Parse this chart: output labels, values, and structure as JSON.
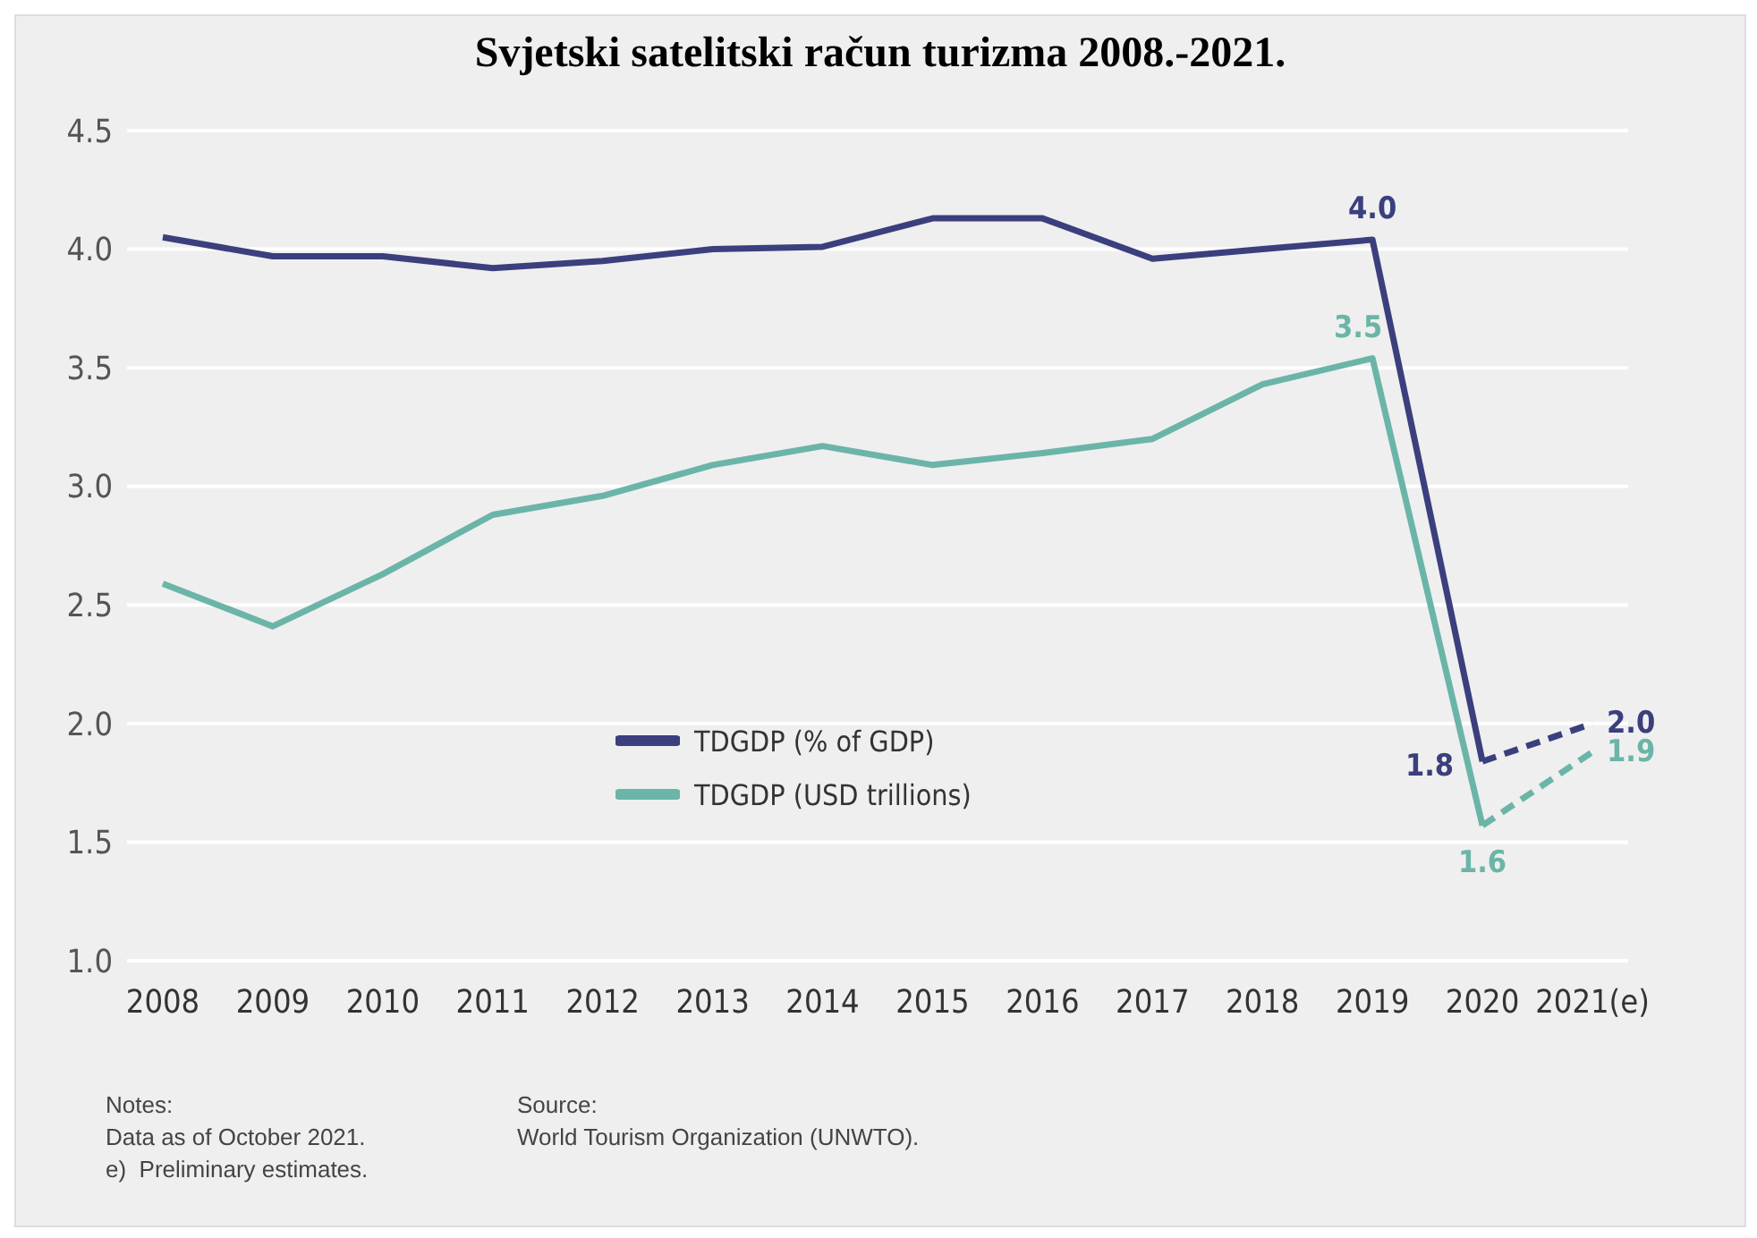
{
  "chart_data": {
    "type": "line",
    "title": "Svjetski satelitski račun turizma 2008.-2021.",
    "categories": [
      "2008",
      "2009",
      "2010",
      "2011",
      "2012",
      "2013",
      "2014",
      "2015",
      "2016",
      "2017",
      "2018",
      "2019",
      "2020",
      "2021(e)"
    ],
    "series": [
      {
        "name": "TDGDP (% of GDP)",
        "color": "#3b3f7d",
        "line_style": "solid",
        "values": [
          4.05,
          3.97,
          3.97,
          3.92,
          3.95,
          4.0,
          4.01,
          4.13,
          4.13,
          3.96,
          4.0,
          4.04,
          1.84,
          null
        ],
        "value_labels": [
          null,
          null,
          null,
          null,
          null,
          null,
          null,
          null,
          null,
          null,
          null,
          "4.0",
          "1.8",
          null
        ]
      },
      {
        "name": "TDGDP (USD trillions)",
        "color": "#6bb5a8",
        "line_style": "solid",
        "values": [
          2.59,
          2.41,
          2.63,
          2.88,
          2.96,
          3.09,
          3.17,
          3.09,
          3.14,
          3.2,
          3.43,
          3.54,
          1.57,
          null
        ],
        "value_labels": [
          null,
          null,
          null,
          null,
          null,
          null,
          null,
          null,
          null,
          null,
          null,
          "3.5",
          "1.6",
          null
        ]
      },
      {
        "color": "#3b3f7d",
        "line_style": "dashed",
        "values": [
          null,
          null,
          null,
          null,
          null,
          null,
          null,
          null,
          null,
          null,
          null,
          null,
          1.84,
          2.0
        ],
        "value_labels": [
          null,
          null,
          null,
          null,
          null,
          null,
          null,
          null,
          null,
          null,
          null,
          null,
          null,
          "2.0"
        ]
      },
      {
        "color": "#6bb5a8",
        "line_style": "dashed",
        "values": [
          null,
          null,
          null,
          null,
          null,
          null,
          null,
          null,
          null,
          null,
          null,
          null,
          1.57,
          1.88
        ],
        "value_labels": [
          null,
          null,
          null,
          null,
          null,
          null,
          null,
          null,
          null,
          null,
          null,
          null,
          null,
          "1.9"
        ]
      }
    ],
    "ylim": [
      1.0,
      4.5
    ],
    "yticks": [
      {
        "value": 1.0,
        "label": "1.0"
      },
      {
        "value": 1.5,
        "label": "1.5"
      },
      {
        "value": 2.0,
        "label": "2.0"
      },
      {
        "value": 2.5,
        "label": "2.5"
      },
      {
        "value": 3.0,
        "label": "3.0"
      },
      {
        "value": 3.5,
        "label": "3.5"
      },
      {
        "value": 4.0,
        "label": "4.0"
      },
      {
        "value": 4.5,
        "label": "4.5"
      }
    ],
    "grid": "y",
    "legend": "bottom",
    "marker": "none",
    "annotations": [
      "Notes:\nData as of October 2021.\ne)  Preliminary estimates.",
      "Source:\nWorld Tourism Organization (UNWTO)."
    ]
  }
}
